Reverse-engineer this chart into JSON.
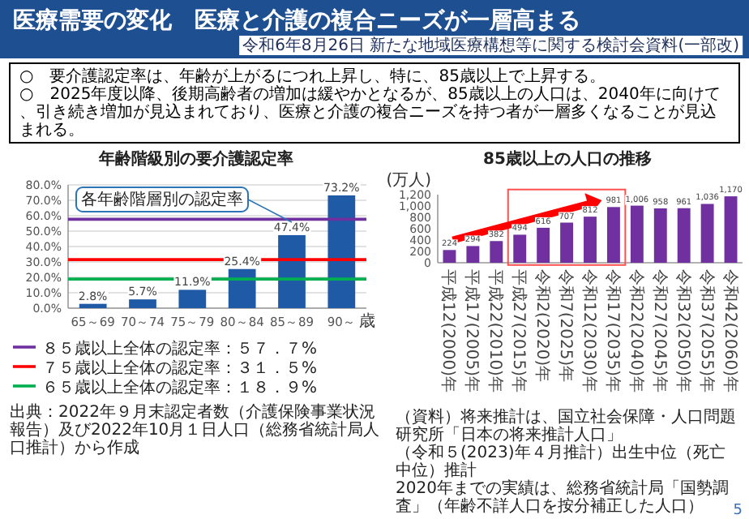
{
  "chart_data": [
    {
      "type": "other",
      "title": "医療需要の変化　医療と介護の複合ニーズが一層高まる",
      "subtitle": "令和6年8月26日 新たな地域医療構想等に関する検討会資料(一部改)",
      "annotations": [
        "○　要介護認定率は、年齢が上がるにつれ上昇し、特に、85歳以上で上昇する。",
        "○　2025年度以降、後期高齢者の増加は緩やかとなるが、85歳以上の人口は、2040年に向けて、引き続き増加が見込まれており、医療と介護の複合ニーズを持つ者が一層多くなることが見込まれる。",
        "5"
      ]
    },
    {
      "type": "bar",
      "title": "年齢階級別の要介護認定率",
      "xlabel": "歳",
      "categories": [
        "65～69",
        "70～74",
        "75～79",
        "80～84",
        "85～89",
        "90～"
      ],
      "values": [
        2.8,
        5.7,
        11.9,
        25.4,
        47.4,
        73.2
      ],
      "color": "#1f5aa6",
      "value_labels": [
        "2.8%",
        "5.7%",
        "11.9%",
        "25.4%",
        "47.4%",
        "73.2%"
      ],
      "ylim": [
        0,
        80
      ],
      "yticks": [
        {
          "value": 0,
          "label": "0.0%"
        },
        {
          "value": 10,
          "label": "10.0%"
        },
        {
          "value": 20,
          "label": "20.0%"
        },
        {
          "value": 30,
          "label": "30.0%"
        },
        {
          "value": 40,
          "label": "40.0%"
        },
        {
          "value": 50,
          "label": "50.0%"
        },
        {
          "value": 60,
          "label": "60.0%"
        },
        {
          "value": 70,
          "label": "70.0%"
        },
        {
          "value": 80,
          "label": "80.0%"
        }
      ],
      "grid": "y",
      "legend": "bottom",
      "ref_lines": [
        {
          "axis": "y",
          "value": 57.7,
          "label": "８５歳以上全体の認定率：５７．７%",
          "color": "#7030a0"
        },
        {
          "axis": "y",
          "value": 31.5,
          "label": "７５歳以上全体の認定率：３１．５%",
          "color": "#ff0000"
        },
        {
          "axis": "y",
          "value": 18.9,
          "label": "６５歳以上全体の認定率：１８．９%",
          "color": "#00b050"
        }
      ],
      "annotations": [
        {
          "text": "各年齢階層別の認定率",
          "x": "85～89",
          "y": 47.4
        },
        "出典：2022年９月末認定者数（介護保険事業状況報告）及び2022年10月１日人口（総務省統計局人口推計）から作成"
      ]
    },
    {
      "type": "bar",
      "title": "85歳以上の人口の推移",
      "ylabel": "(万人)",
      "categories": [
        "平成12(2000)年",
        "平成17(2005)年",
        "平成22(2010)年",
        "平成27(2015)年",
        "令和2(2020)年",
        "令和7(2025)年",
        "令和12(2030)年",
        "令和17(2035)年",
        "令和22(2040)年",
        "令和27(2045)年",
        "令和32(2050)年",
        "令和37(2055)年",
        "令和42(2060)年"
      ],
      "values": [
        224,
        294,
        382,
        494,
        616,
        707,
        812,
        981,
        1006,
        958,
        961,
        1036,
        1170
      ],
      "color": "#7030a0",
      "value_labels": [
        "224",
        "294",
        "382",
        "494",
        "616",
        "707",
        "812",
        "981",
        "1,006",
        "958",
        "961",
        "1,036",
        "1,170"
      ],
      "ylim": [
        0,
        1200
      ],
      "yticks": [
        0,
        200,
        400,
        600,
        800,
        {
          "value": 1000,
          "label": "1,000"
        },
        {
          "value": 1200,
          "label": "1,200"
        }
      ],
      "annotations": [
        "（資料）将来推計は、国立社会保障・人口問題研究所「日本の将来推計人口」",
        "（令和５(2023)年４月推計）出生中位（死亡中位）推計",
        "2020年までの実績は、総務省統計局「国勢調査」（年齢不詳人口を按分補正した人口）"
      ]
    }
  ]
}
